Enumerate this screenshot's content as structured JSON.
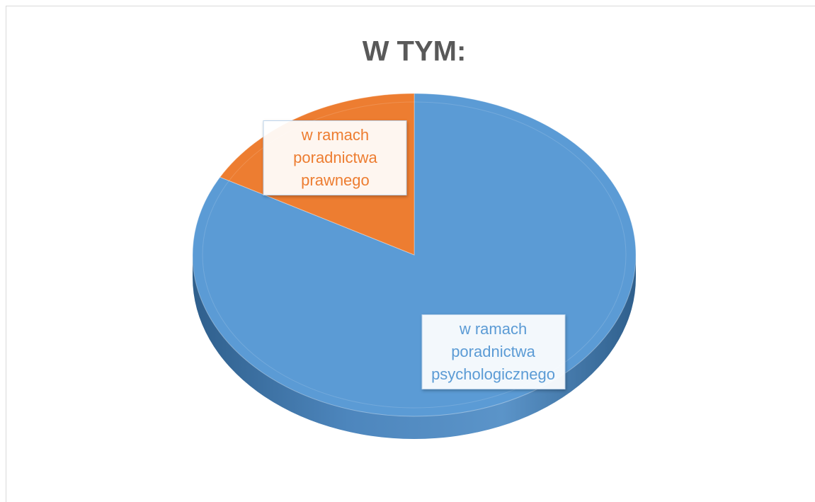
{
  "chart_data": {
    "type": "pie",
    "title": "W TYM:",
    "categories": [
      "w ramach poradnictwa psychologicznego",
      "w ramach poradnictwa prawnego"
    ],
    "values": [
      83,
      17
    ],
    "colors": [
      "#5b9bd5",
      "#ed7d31"
    ]
  }
}
